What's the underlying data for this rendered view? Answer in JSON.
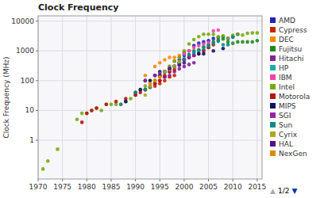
{
  "chart_data": {
    "type": "scatter",
    "title": "Clock Frequency",
    "ylabel": "Clock Frequency (MHz)",
    "log": "y",
    "grid": true,
    "legend": "right",
    "xlim": [
      1970,
      2016
    ],
    "ylim": [
      0.05,
      15000
    ],
    "xticks": [
      1970,
      1975,
      1980,
      1985,
      1990,
      1995,
      2000,
      2005,
      2010,
      2015
    ],
    "yticks": [
      1,
      10,
      100,
      1000,
      10000
    ],
    "series": [
      {
        "name": "AMD",
        "color": "#2222bb",
        "x": [
          1996,
          1997,
          1998,
          1999,
          2000,
          2001,
          2002,
          2003,
          2004,
          2005,
          2006,
          2007,
          2008,
          2009,
          2010,
          2011
        ],
        "values": [
          133,
          200,
          300,
          500,
          700,
          1000,
          1500,
          1800,
          2000,
          2200,
          2600,
          2800,
          3000,
          2600,
          3000,
          3600
        ]
      },
      {
        "name": "Cypress",
        "color": "#cc2200",
        "x": [
          1990,
          1992,
          1993,
          1994,
          1995,
          1996,
          1997,
          1998
        ],
        "values": [
          33,
          50,
          60,
          66,
          80,
          100,
          133,
          150
        ]
      },
      {
        "name": "DEC",
        "color": "#ff8800",
        "x": [
          1992,
          1994,
          1995,
          1996,
          1997,
          1998,
          1999,
          2000,
          2001
        ],
        "values": [
          150,
          300,
          400,
          500,
          600,
          600,
          700,
          833,
          1000
        ]
      },
      {
        "name": "Fujitsu",
        "color": "#228822",
        "x": [
          2000,
          2002,
          2003,
          2004,
          2005,
          2006,
          2007,
          2008,
          2009,
          2010,
          2011,
          2012,
          2013,
          2014,
          2015
        ],
        "values": [
          900,
          1000,
          1100,
          1300,
          1600,
          2000,
          2300,
          2500,
          2000,
          1800,
          2000,
          2000,
          2000,
          2000,
          2200
        ]
      },
      {
        "name": "Hitachi",
        "color": "#882299",
        "x": [
          1994,
          1995,
          1996,
          1997,
          1998,
          1999,
          2000,
          2001,
          2002
        ],
        "values": [
          80,
          100,
          133,
          150,
          200,
          250,
          300,
          350,
          400
        ]
      },
      {
        "name": "HP",
        "color": "#22aaaa",
        "x": [
          1992,
          1994,
          1996,
          1997,
          1998,
          1999,
          2000,
          2001,
          2002,
          2003,
          2004,
          2005
        ],
        "values": [
          100,
          150,
          200,
          250,
          300,
          400,
          550,
          750,
          875,
          1000,
          1100,
          1300
        ]
      },
      {
        "name": "IBM",
        "color": "#ee44aa",
        "x": [
          1997,
          1998,
          1999,
          2000,
          2001,
          2002,
          2003,
          2004,
          2005,
          2006,
          2007
        ],
        "values": [
          300,
          450,
          600,
          800,
          1000,
          1300,
          1500,
          1700,
          1900,
          4700,
          5000
        ]
      },
      {
        "name": "Intel",
        "color": "#77aa11",
        "x": [
          1971,
          1972,
          1974,
          1978,
          1979,
          1980,
          1981,
          1982,
          1983,
          1984,
          1985,
          1986,
          1987,
          1988,
          1989,
          1990,
          1991,
          1992,
          1993,
          1994,
          1995,
          1996,
          1997,
          1998,
          1999,
          2000,
          2001,
          2002,
          2003,
          2004,
          2005,
          2006,
          2007,
          2008,
          2009,
          2010,
          2011,
          2012,
          2013,
          2014,
          2015
        ],
        "values": [
          0.108,
          0.2,
          0.5,
          5,
          8,
          8,
          10,
          12,
          10,
          16,
          16,
          16,
          16,
          20,
          25,
          33,
          50,
          66,
          100,
          100,
          150,
          200,
          300,
          450,
          600,
          1000,
          1700,
          2400,
          3000,
          3600,
          3600,
          3600,
          3000,
          3200,
          2660,
          3330,
          3600,
          3400,
          3900,
          4000,
          4000
        ]
      },
      {
        "name": "Motorola",
        "color": "#bb1111",
        "x": [
          1979,
          1980,
          1981,
          1982,
          1984,
          1986,
          1988,
          1990,
          1991,
          1992,
          1993,
          1994,
          1995,
          1996,
          1997,
          1998,
          1999,
          2000,
          2001,
          2002,
          2003,
          2004,
          2005,
          2006
        ],
        "values": [
          4,
          8,
          10,
          12,
          16,
          20,
          25,
          33,
          40,
          50,
          66,
          80,
          100,
          150,
          200,
          233,
          350,
          500,
          600,
          700,
          800,
          1000,
          1300,
          1600
        ]
      },
      {
        "name": "MIPS",
        "color": "#111166",
        "x": [
          1988,
          1990,
          1991,
          1992,
          1993,
          1994,
          1995,
          1996,
          1997,
          1998,
          1999,
          2000,
          2001,
          2002,
          2003,
          2004,
          2006,
          2008
        ],
        "values": [
          20,
          40,
          50,
          100,
          100,
          150,
          200,
          200,
          250,
          300,
          400,
          500,
          600,
          700,
          800,
          800,
          1000,
          1200
        ]
      },
      {
        "name": "SGI",
        "color": "#9922aa",
        "x": [
          1992,
          1994,
          1995,
          1996,
          1997,
          1998,
          1999,
          2000,
          2001,
          2002
        ],
        "values": [
          100,
          150,
          175,
          200,
          250,
          300,
          400,
          500,
          600,
          700
        ]
      },
      {
        "name": "Sun",
        "color": "#118888",
        "x": [
          1987,
          1990,
          1992,
          1993,
          1994,
          1995,
          1996,
          1997,
          1998,
          1999,
          2000,
          2001,
          2002,
          2003,
          2004,
          2005,
          2006,
          2007,
          2008,
          2009,
          2010
        ],
        "values": [
          16,
          40,
          50,
          60,
          100,
          150,
          200,
          250,
          300,
          400,
          500,
          750,
          900,
          1050,
          1350,
          1500,
          1800,
          2100,
          1600,
          1600,
          2860
        ]
      },
      {
        "name": "Cyrix",
        "color": "#aaaa22",
        "x": [
          1992,
          1993,
          1994,
          1995,
          1996,
          1997,
          1998,
          1999
        ],
        "values": [
          33,
          66,
          100,
          133,
          200,
          233,
          300,
          433
        ]
      },
      {
        "name": "HAL",
        "color": "#551188",
        "x": [
          1995,
          1997,
          1999,
          2000
        ],
        "values": [
          150,
          250,
          330,
          400
        ]
      },
      {
        "name": "NexGen",
        "color": "#dd8800",
        "x": [
          1993,
          1994,
          1995
        ],
        "values": [
          80,
          100,
          133
        ]
      }
    ],
    "annotations": [
      {
        "text": "▲",
        "color": "#aaaaaa"
      },
      {
        "text": "1/2"
      },
      {
        "text": "▼",
        "color": "#003399"
      }
    ]
  }
}
